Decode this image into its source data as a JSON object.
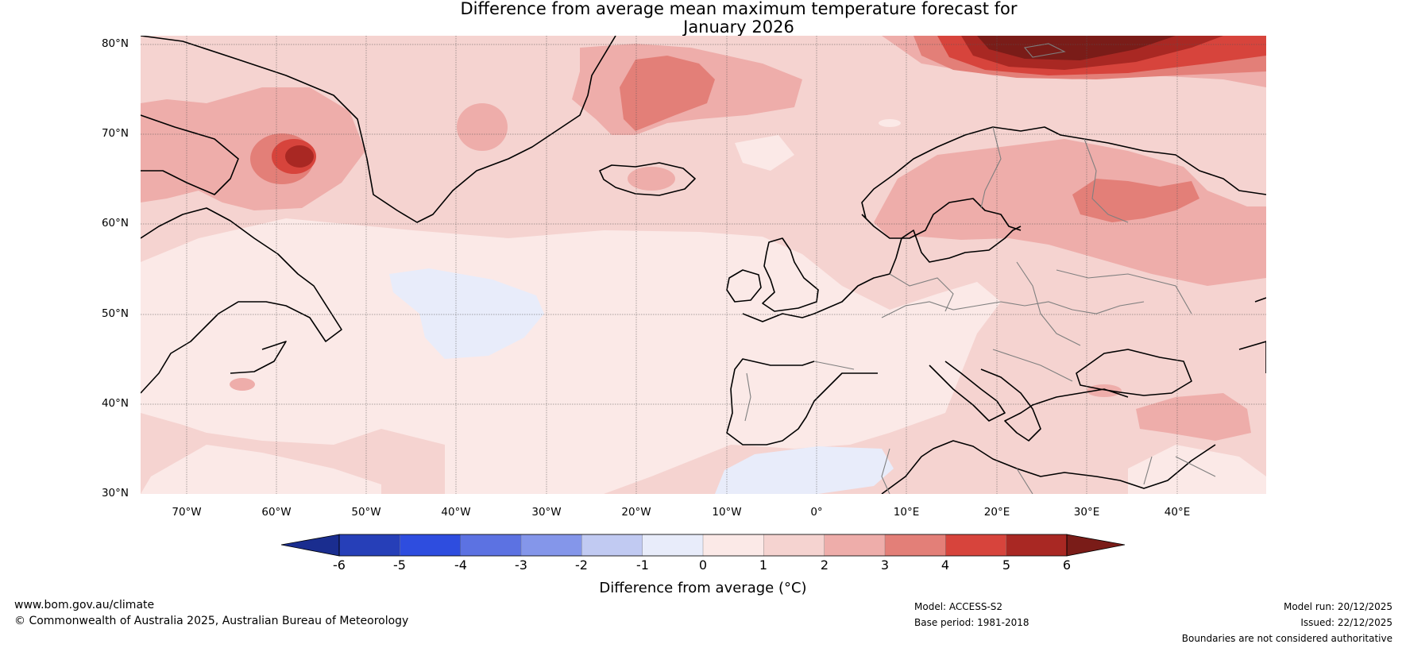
{
  "title_line1": "Difference from average mean maximum temperature forecast for",
  "title_line2": "January 2026",
  "lat_labels": [
    "80°N",
    "70°N",
    "60°N",
    "50°N",
    "40°N",
    "30°N"
  ],
  "lon_labels": [
    "70°W",
    "60°W",
    "50°W",
    "40°W",
    "30°W",
    "20°W",
    "10°W",
    "0°",
    "10°E",
    "20°E",
    "30°E",
    "40°E"
  ],
  "colorbar": {
    "title": "Difference from average (°C)",
    "ticks": [
      "-6",
      "-5",
      "-4",
      "-3",
      "-2",
      "-1",
      "0",
      "1",
      "2",
      "3",
      "4",
      "5",
      "6"
    ],
    "colors": [
      "#1a2d8f",
      "#263fb8",
      "#2e4ddf",
      "#5c72e2",
      "#8496ea",
      "#c1caf2",
      "#e8ecfa",
      "#fbe9e7",
      "#f5d3d0",
      "#eeadaa",
      "#e37f78",
      "#d7443c",
      "#a92823",
      "#7a1c18"
    ]
  },
  "footer": {
    "website": "www.bom.gov.au/climate",
    "copyright": "© Commonwealth of Australia 2025, Australian Bureau of Meteorology",
    "model": "Model: ACCESS-S2",
    "base_period": "Base period: 1981-2018",
    "model_run": "Model run: 20/12/2025",
    "issued": "Issued: 22/12/2025",
    "disclaimer": "Boundaries are not considered authoritative"
  }
}
